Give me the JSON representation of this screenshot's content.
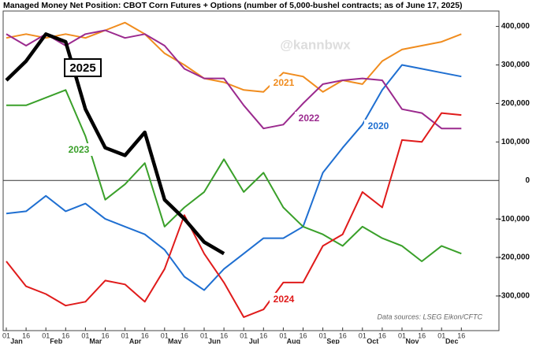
{
  "chart_data": {
    "type": "line",
    "title": "Managed Money Net Position: CBOT Corn Futures + Options (number of 5,000-bushel contracts; as of June 17, 2025)",
    "watermark": "@kannbwx",
    "source": "Data sources: LSEG Eikon/CFTC",
    "categories": [
      "01",
      "16",
      "01",
      "16",
      "01",
      "16",
      "01",
      "16",
      "01",
      "16",
      "01",
      "16",
      "01",
      "16",
      "01",
      "16",
      "01",
      "16",
      "01",
      "16",
      "01",
      "16",
      "01",
      "16"
    ],
    "months": [
      "Jan",
      "Feb",
      "Mar",
      "Apr",
      "May",
      "Jun",
      "Jul",
      "Aug",
      "Sep",
      "Oct",
      "Nov",
      "Dec"
    ],
    "ylim": [
      -390000,
      440000
    ],
    "yticks": [
      {
        "value": 400000,
        "label": "400,000"
      },
      {
        "value": 300000,
        "label": "300,000"
      },
      {
        "value": 200000,
        "label": "200,000"
      },
      {
        "value": 100000,
        "label": "100,000"
      },
      0,
      {
        "value": -100000,
        "label": "-100,000"
      },
      {
        "value": -200000,
        "label": "-200,000"
      },
      {
        "value": -300000,
        "label": "-300,000"
      }
    ],
    "series": [
      {
        "name": "2020",
        "color": "#1f6fd1",
        "values": [
          -86000,
          -80000,
          -40000,
          -80000,
          -60000,
          -100000,
          -120000,
          -140000,
          -180000,
          -250000,
          -285000,
          -230000,
          -190000,
          -150000,
          -150000,
          -120000,
          20000,
          85000,
          145000,
          235000,
          300000,
          290000,
          280000,
          270000
        ]
      },
      {
        "name": "2021",
        "color": "#f08c1e",
        "values": [
          370000,
          380000,
          370000,
          380000,
          370000,
          390000,
          410000,
          380000,
          330000,
          300000,
          265000,
          255000,
          235000,
          230000,
          280000,
          270000,
          230000,
          260000,
          250000,
          310000,
          340000,
          350000,
          360000,
          380000
        ]
      },
      {
        "name": "2022",
        "color": "#9b2a8e",
        "values": [
          380000,
          350000,
          380000,
          350000,
          380000,
          390000,
          370000,
          380000,
          350000,
          290000,
          265000,
          265000,
          195000,
          135000,
          145000,
          200000,
          250000,
          260000,
          265000,
          260000,
          185000,
          175000,
          135000,
          135000
        ]
      },
      {
        "name": "2023",
        "color": "#3aa02a",
        "values": [
          195000,
          195000,
          215000,
          235000,
          115000,
          -50000,
          -10000,
          45000,
          -120000,
          -70000,
          -30000,
          55000,
          -30000,
          20000,
          -70000,
          -120000,
          -140000,
          -170000,
          -120000,
          -150000,
          -170000,
          -210000,
          -170000,
          -190000
        ]
      },
      {
        "name": "2024",
        "color": "#e01b1b",
        "values": [
          -210000,
          -275000,
          -295000,
          -325000,
          -315000,
          -260000,
          -270000,
          -315000,
          -230000,
          -90000,
          -190000,
          -265000,
          -355000,
          -335000,
          -265000,
          -265000,
          -170000,
          -140000,
          -30000,
          -70000,
          105000,
          100000,
          175000,
          170000
        ]
      },
      {
        "name": "2025",
        "color": "#000000",
        "values": [
          260000,
          310000,
          380000,
          360000,
          185000,
          85000,
          65000,
          125000,
          -50000,
          -100000,
          -160000,
          -190000,
          null,
          null,
          null,
          null,
          null,
          null,
          null,
          null,
          null,
          null,
          null,
          null
        ]
      }
    ]
  }
}
